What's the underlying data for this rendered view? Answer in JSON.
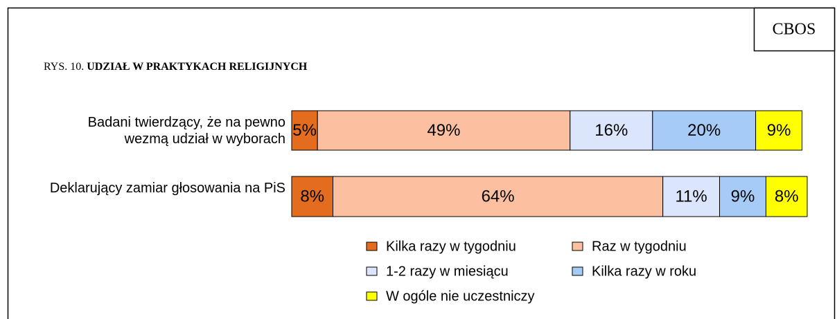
{
  "source": "CBOS",
  "chart_data": {
    "type": "stacked-barh",
    "figure_label": "RYS. 10.",
    "title": "UDZIAŁ W PRAKTYKACH RELIGIJNYCH",
    "categories": [
      "Badani twierdzący, że na pewno wezmą udział w wyborach",
      "Deklarujący zamiar głosowania na PiS"
    ],
    "xlim": [
      0,
      100
    ],
    "series": [
      {
        "name": "Kilka razy w tygodniu",
        "color": "#e36c1e",
        "values": [
          5,
          8
        ],
        "value_labels": [
          "5%",
          "8%"
        ]
      },
      {
        "name": "Raz w tygodniu",
        "color": "#fcbfa0",
        "values": [
          49,
          64
        ],
        "value_labels": [
          "49%",
          "64%"
        ]
      },
      {
        "name": "1-2 razy w miesiącu",
        "color": "#dbe5fb",
        "values": [
          16,
          11
        ],
        "value_labels": [
          "16%",
          "11%"
        ]
      },
      {
        "name": "Kilka razy w roku",
        "color": "#a6cbf6",
        "values": [
          20,
          9
        ],
        "value_labels": [
          "20%",
          "9%"
        ]
      },
      {
        "name": "W ogóle nie uczestniczy",
        "color": "#ffff00",
        "values": [
          9,
          8
        ],
        "value_labels": [
          "9%",
          "8%"
        ]
      }
    ]
  }
}
